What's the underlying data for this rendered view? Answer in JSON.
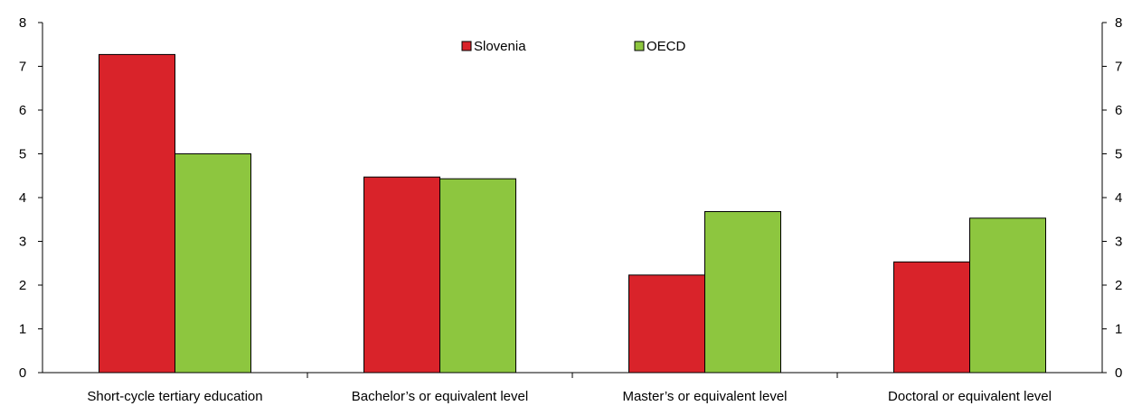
{
  "chart_data": {
    "type": "bar",
    "categories": [
      "Short-cycle tertiary education",
      "Bachelor’s or equivalent level",
      "Master’s or equivalent level",
      "Doctoral or equivalent level"
    ],
    "series": [
      {
        "name": "Slovenia",
        "color": "#d9232a",
        "values": [
          7.27,
          4.47,
          2.23,
          2.53
        ]
      },
      {
        "name": "OECD",
        "color": "#8dc63f",
        "values": [
          5.0,
          4.43,
          3.68,
          3.53
        ]
      }
    ],
    "yticks_left": [
      "0",
      "1",
      "2",
      "3",
      "4",
      "5",
      "6",
      "7",
      "8"
    ],
    "yticks_right": [
      "0",
      "1",
      "2",
      "3",
      "4",
      "5",
      "6",
      "7",
      "8"
    ],
    "ylim": [
      0,
      8
    ],
    "grid": false,
    "legend_position": "top-center",
    "title": "",
    "xlabel": "",
    "ylabel": ""
  }
}
